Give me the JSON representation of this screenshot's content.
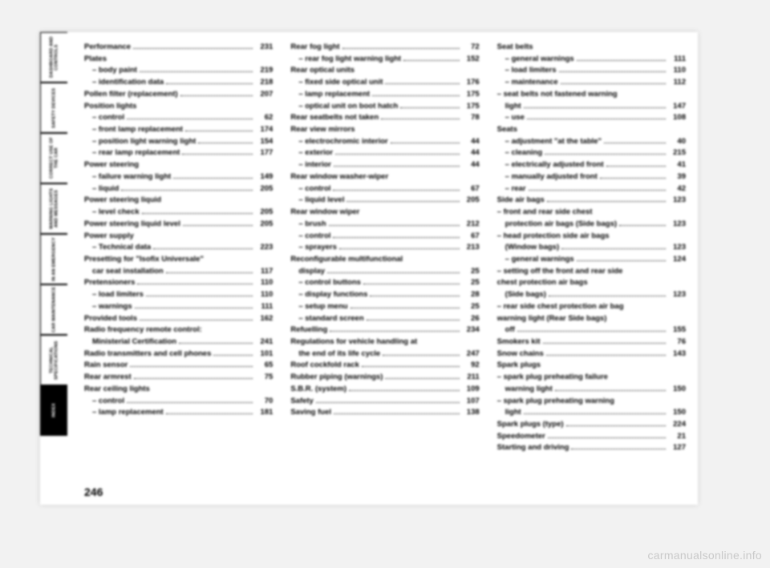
{
  "pageNumber": "246",
  "watermark": "carmanualsonline.info",
  "tabs": [
    {
      "label": "DASHBOARD\nAND CONTROLS",
      "active": false
    },
    {
      "label": "SAFETY\nDEVICES",
      "active": false
    },
    {
      "label": "CORRECT USE\nOF THE CAR",
      "active": false
    },
    {
      "label": "WARNING\nLIGHTS AND\nMESSAGES",
      "active": false
    },
    {
      "label": "IN AN\nEMERGENCY",
      "active": false
    },
    {
      "label": "CAR\nMAINTENANCE",
      "active": false
    },
    {
      "label": "TECHNICAL\nSPECIFICATIONS",
      "active": false
    },
    {
      "label": "INDEX",
      "active": true
    }
  ],
  "columns": [
    [
      {
        "t": "entry",
        "label": "Performance",
        "page": "231"
      },
      {
        "t": "head",
        "label": "Plates"
      },
      {
        "t": "sub",
        "label": "– body paint",
        "page": "219"
      },
      {
        "t": "sub",
        "label": "– identification data",
        "page": "218"
      },
      {
        "t": "entry",
        "label": "Pollen filter (replacement)",
        "page": "207"
      },
      {
        "t": "head",
        "label": "Position lights"
      },
      {
        "t": "sub",
        "label": "– control",
        "page": "62"
      },
      {
        "t": "sub",
        "label": "– front lamp replacement",
        "page": "174"
      },
      {
        "t": "sub",
        "label": "– position light warning light",
        "page": "154"
      },
      {
        "t": "sub",
        "label": "– rear lamp replacement",
        "page": "177"
      },
      {
        "t": "head",
        "label": "Power steering"
      },
      {
        "t": "sub",
        "label": "– failure warning light",
        "page": "149"
      },
      {
        "t": "sub",
        "label": "– liquid",
        "page": "205"
      },
      {
        "t": "head",
        "label": "Power steering liquid"
      },
      {
        "t": "sub",
        "label": "– level check",
        "page": "205"
      },
      {
        "t": "entry",
        "label": "Power steering liquid level",
        "page": "205"
      },
      {
        "t": "head",
        "label": "Power supply"
      },
      {
        "t": "sub",
        "label": "– Technical data",
        "page": "223"
      },
      {
        "t": "head",
        "label": "Presetting for \"Isofix Universale\""
      },
      {
        "t": "sub",
        "label": "car seat installation",
        "page": "117"
      },
      {
        "t": "entry",
        "label": "Pretensioners",
        "page": "110"
      },
      {
        "t": "sub",
        "label": "– load limiters",
        "page": "110"
      },
      {
        "t": "sub",
        "label": "– warnings",
        "page": "111"
      },
      {
        "t": "entry",
        "label": "Provided tools",
        "page": "162"
      },
      {
        "t": "head",
        "label": "Radio frequency remote control:"
      },
      {
        "t": "sub",
        "label": "Ministerial Certification",
        "page": "241"
      },
      {
        "t": "entry",
        "label": "Radio transmitters and cell phones",
        "page": "101"
      },
      {
        "t": "entry",
        "label": "Rain sensor",
        "page": "65"
      },
      {
        "t": "entry",
        "label": "Rear armrest",
        "page": "75"
      },
      {
        "t": "head",
        "label": "Rear ceiling lights"
      },
      {
        "t": "sub",
        "label": "– control",
        "page": "70"
      },
      {
        "t": "sub",
        "label": "– lamp replacement",
        "page": "181"
      }
    ],
    [
      {
        "t": "entry",
        "label": "Rear fog light",
        "page": "72"
      },
      {
        "t": "sub",
        "label": "– rear fog light warning light",
        "page": "152"
      },
      {
        "t": "head",
        "label": "Rear optical units"
      },
      {
        "t": "sub",
        "label": "– fixed side optical unit",
        "page": "176"
      },
      {
        "t": "sub",
        "label": "– lamp replacement",
        "page": "175"
      },
      {
        "t": "sub",
        "label": "– optical unit on boot hatch",
        "page": "175"
      },
      {
        "t": "entry",
        "label": "Rear seatbelts not taken",
        "page": "78"
      },
      {
        "t": "head",
        "label": "Rear view mirrors"
      },
      {
        "t": "sub",
        "label": "– electrochromic interior",
        "page": "44"
      },
      {
        "t": "sub",
        "label": "– exterior",
        "page": "44"
      },
      {
        "t": "sub",
        "label": "– interior",
        "page": "44"
      },
      {
        "t": "head",
        "label": "Rear window washer-wiper"
      },
      {
        "t": "sub",
        "label": "– control",
        "page": "67"
      },
      {
        "t": "sub",
        "label": "– liquid level",
        "page": "205"
      },
      {
        "t": "head",
        "label": "Rear window wiper"
      },
      {
        "t": "sub",
        "label": "– brush",
        "page": "212"
      },
      {
        "t": "sub",
        "label": "– control",
        "page": "67"
      },
      {
        "t": "sub",
        "label": "– sprayers",
        "page": "213"
      },
      {
        "t": "head",
        "label": "Reconfigurable multifunctional"
      },
      {
        "t": "sub",
        "label": "display",
        "page": "25"
      },
      {
        "t": "sub",
        "label": "– control buttons",
        "page": "25"
      },
      {
        "t": "sub",
        "label": "– display functions",
        "page": "28"
      },
      {
        "t": "sub",
        "label": "– setup menu",
        "page": "25"
      },
      {
        "t": "sub",
        "label": "– standard screen",
        "page": "26"
      },
      {
        "t": "entry",
        "label": "Refuelling",
        "page": "234"
      },
      {
        "t": "head",
        "label": "Regulations for vehicle handling at"
      },
      {
        "t": "sub",
        "label": "the end of its life cycle",
        "page": "247"
      },
      {
        "t": "entry",
        "label": "Roof cockfold rack",
        "page": "92"
      },
      {
        "t": "entry",
        "label": "Rubber piping (warnings)",
        "page": "211"
      },
      {
        "t": "entry",
        "label": "S.B.R. (system)",
        "page": "109"
      },
      {
        "t": "entry",
        "label": "Safety",
        "page": "107"
      },
      {
        "t": "entry",
        "label": "Saving fuel",
        "page": "138"
      }
    ],
    [
      {
        "t": "head",
        "label": "Seat belts"
      },
      {
        "t": "sub",
        "label": "– general warnings",
        "page": "111"
      },
      {
        "t": "sub",
        "label": "– load limiters",
        "page": "110"
      },
      {
        "t": "sub",
        "label": "– maintenance",
        "page": "112"
      },
      {
        "t": "head",
        "label": "– seat belts not fastened warning"
      },
      {
        "t": "sub",
        "label": "light",
        "page": "147"
      },
      {
        "t": "sub",
        "label": "– use",
        "page": "108"
      },
      {
        "t": "head",
        "label": "Seats"
      },
      {
        "t": "sub",
        "label": "– adjustment \"at the table\"",
        "page": "40"
      },
      {
        "t": "sub",
        "label": "– cleaning",
        "page": "215"
      },
      {
        "t": "sub",
        "label": "– electrically adjusted front",
        "page": "41"
      },
      {
        "t": "sub",
        "label": "– manually adjusted front",
        "page": "39"
      },
      {
        "t": "sub",
        "label": "– rear",
        "page": "42"
      },
      {
        "t": "entry",
        "label": "Side air bags",
        "page": "123"
      },
      {
        "t": "head",
        "label": "– front and rear side chest"
      },
      {
        "t": "sub",
        "label": "protection air bags (Side bags)",
        "page": "123"
      },
      {
        "t": "head",
        "label": "– head protection side air bags"
      },
      {
        "t": "sub",
        "label": "(Window bags)",
        "page": "123"
      },
      {
        "t": "sub",
        "label": "– general warnings",
        "page": "124"
      },
      {
        "t": "head",
        "label": "– setting off the front and rear side"
      },
      {
        "t": "head",
        "label": "chest protection air bags"
      },
      {
        "t": "sub",
        "label": "(Side bags)",
        "page": "123"
      },
      {
        "t": "head",
        "label": "– rear side chest protection air bag"
      },
      {
        "t": "head",
        "label": "warning light (Rear Side bags)"
      },
      {
        "t": "sub",
        "label": "off",
        "page": "155"
      },
      {
        "t": "entry",
        "label": "Smokers kit",
        "page": "76"
      },
      {
        "t": "entry",
        "label": "Snow chains",
        "page": "143"
      },
      {
        "t": "head",
        "label": "Spark plugs"
      },
      {
        "t": "head",
        "label": "– spark plug preheating failure"
      },
      {
        "t": "sub",
        "label": "warning light",
        "page": "150"
      },
      {
        "t": "head",
        "label": "– spark plug preheating warning"
      },
      {
        "t": "sub",
        "label": "light",
        "page": "150"
      },
      {
        "t": "entry",
        "label": "Spark plugs (type)",
        "page": "224"
      },
      {
        "t": "entry",
        "label": "Speedometer",
        "page": "21"
      },
      {
        "t": "entry",
        "label": "Starting and driving",
        "page": "127"
      }
    ]
  ]
}
